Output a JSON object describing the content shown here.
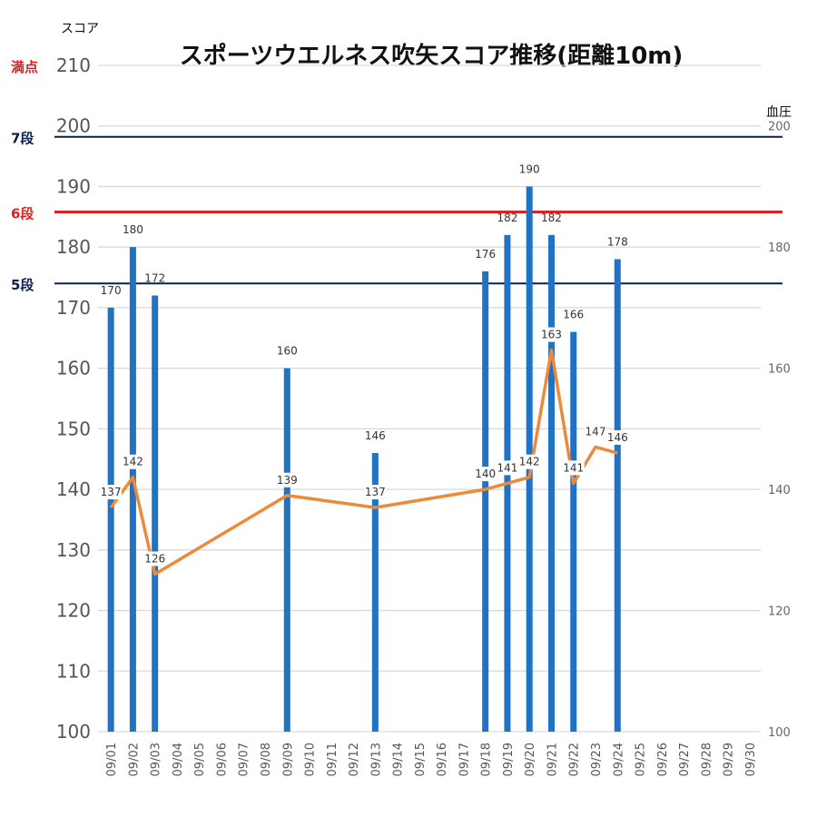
{
  "chart_data": {
    "type": "bar+line",
    "title": "スポーツウエルネス吹矢スコア推移(距離10m)",
    "left_axis_title": "スコア",
    "right_axis_title": "血圧",
    "ylim": [
      100,
      210
    ],
    "left_ticks": [
      100,
      110,
      120,
      130,
      140,
      150,
      160,
      170,
      180,
      190,
      200,
      210
    ],
    "right_ticks": [
      100,
      120,
      140,
      160,
      180,
      200
    ],
    "categories": [
      "09/01",
      "09/02",
      "09/03",
      "09/04",
      "09/05",
      "09/06",
      "09/07",
      "09/08",
      "09/09",
      "09/10",
      "09/11",
      "09/12",
      "09/13",
      "09/14",
      "09/15",
      "09/16",
      "09/17",
      "09/18",
      "09/19",
      "09/20",
      "09/21",
      "09/22",
      "09/23",
      "09/24",
      "09/25",
      "09/26",
      "09/27",
      "09/28",
      "09/29",
      "09/30"
    ],
    "series": [
      {
        "type": "bar",
        "axis": "left",
        "color": "#1f72c4",
        "values": [
          170,
          180,
          172,
          null,
          null,
          null,
          null,
          null,
          160,
          null,
          null,
          null,
          146,
          null,
          null,
          null,
          null,
          176,
          182,
          190,
          182,
          166,
          null,
          178,
          null,
          null,
          null,
          null,
          null,
          null
        ]
      },
      {
        "type": "line",
        "axis": "right",
        "color": "#ed8a3a",
        "values": [
          137,
          142,
          126,
          null,
          null,
          null,
          null,
          null,
          139,
          null,
          null,
          null,
          137,
          null,
          null,
          null,
          null,
          140,
          141,
          142,
          163,
          141,
          147,
          146,
          null,
          null,
          null,
          null,
          null,
          null
        ]
      }
    ],
    "reference_lines": [
      {
        "label": "満点",
        "value": 210,
        "color": "#e02020",
        "line": false
      },
      {
        "label": "7段",
        "value": 198.2,
        "color": "#0d1f4f",
        "line": true
      },
      {
        "label": "6段",
        "value": 185.8,
        "color": "#e02020",
        "line": true
      },
      {
        "label": "5段",
        "value": 174,
        "color": "#0d1f4f",
        "line": true
      }
    ],
    "grid": true,
    "legend": "none"
  }
}
